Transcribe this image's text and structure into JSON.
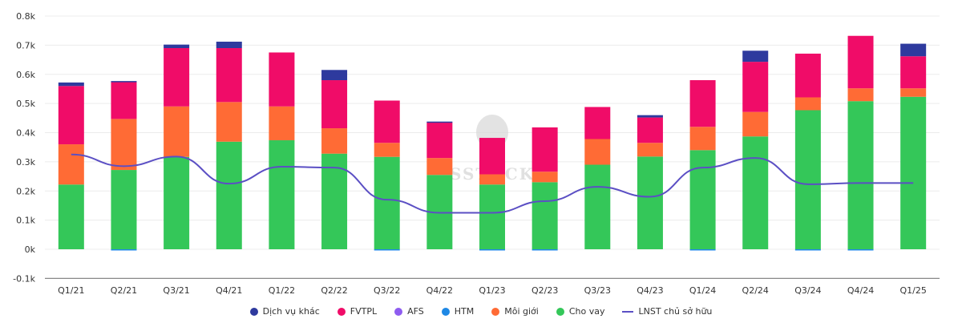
{
  "chart_data": {
    "type": "bar",
    "stacked": true,
    "title": "",
    "xlabel": "",
    "ylabel": "",
    "ylim": [
      -100,
      800
    ],
    "yticks": [
      -100,
      0,
      100,
      200,
      300,
      400,
      500,
      600,
      700,
      800
    ],
    "ytick_labels": [
      "-0.1k",
      "0k",
      "0.1k",
      "0.2k",
      "0.3k",
      "0.4k",
      "0.5k",
      "0.6k",
      "0.7k",
      "0.8k"
    ],
    "grid": true,
    "legend_position": "bottom-center",
    "watermark": "SSTOCK",
    "categories": [
      "Q1/21",
      "Q2/21",
      "Q3/21",
      "Q4/21",
      "Q1/22",
      "Q2/22",
      "Q3/22",
      "Q4/22",
      "Q1/23",
      "Q2/23",
      "Q3/23",
      "Q4/23",
      "Q1/24",
      "Q2/24",
      "Q3/24",
      "Q4/24",
      "Q1/25"
    ],
    "series": [
      {
        "name": "Cho vay",
        "kind": "bar",
        "color": "#34c759",
        "values": [
          222,
          272,
          317,
          369,
          374,
          328,
          317,
          255,
          222,
          230,
          290,
          318,
          340,
          387,
          477,
          508,
          523
        ]
      },
      {
        "name": "Môi giới",
        "kind": "bar",
        "color": "#ff6b35",
        "values": [
          138,
          175,
          173,
          136,
          116,
          87,
          48,
          58,
          35,
          36,
          88,
          47,
          80,
          84,
          44,
          44,
          29
        ]
      },
      {
        "name": "HTM",
        "kind": "bar",
        "color": "#1e88e5",
        "values": [
          0,
          -3,
          0,
          0,
          0,
          0,
          -3,
          0,
          -3,
          -4,
          0,
          0,
          -4,
          0,
          -3,
          -3,
          0
        ]
      },
      {
        "name": "AFS",
        "kind": "bar",
        "color": "#8e5cf0",
        "values": [
          0,
          0,
          0,
          0,
          0,
          0,
          0,
          0,
          0,
          0,
          0,
          0,
          0,
          0,
          0,
          0,
          0
        ]
      },
      {
        "name": "FVTPL",
        "kind": "bar",
        "color": "#f00c68",
        "values": [
          200,
          128,
          200,
          185,
          185,
          165,
          145,
          122,
          125,
          152,
          110,
          87,
          160,
          172,
          150,
          180,
          110
        ]
      },
      {
        "name": "Dịch vụ khác",
        "kind": "bar",
        "color": "#2e3a9e",
        "values": [
          12,
          2,
          12,
          22,
          0,
          35,
          0,
          3,
          0,
          0,
          0,
          8,
          0,
          38,
          0,
          0,
          43
        ]
      },
      {
        "name": "LNST chủ sở hữu",
        "kind": "line",
        "color": "#5b4fc4",
        "values": [
          325,
          285,
          318,
          225,
          283,
          280,
          170,
          125,
          125,
          165,
          214,
          180,
          280,
          313,
          223,
          227,
          227
        ]
      }
    ],
    "legend_order": [
      "Dịch vụ khác",
      "FVTPL",
      "AFS",
      "HTM",
      "Môi giới",
      "Cho vay",
      "LNST chủ sở hữu"
    ]
  }
}
